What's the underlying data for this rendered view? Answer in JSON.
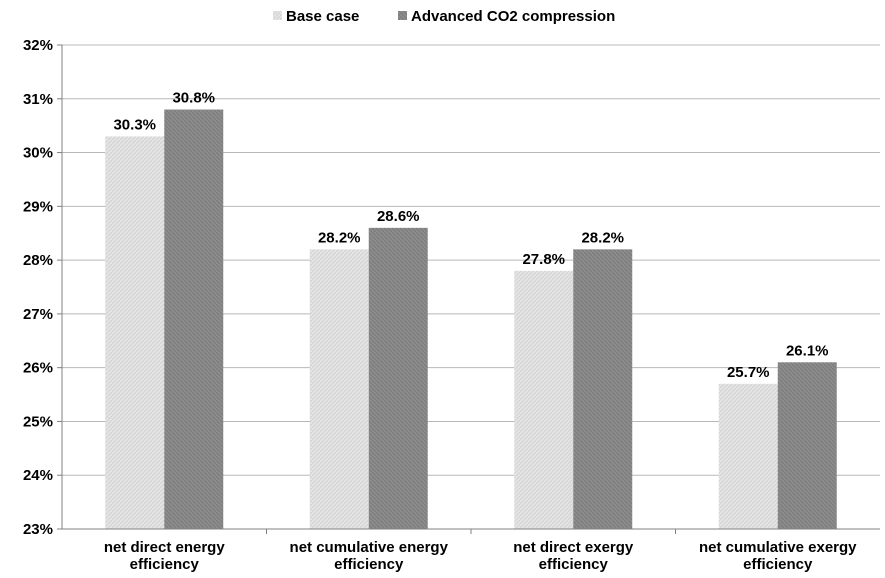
{
  "chart_data": {
    "type": "bar",
    "categories": [
      [
        "net direct energy",
        "efficiency"
      ],
      [
        "net cumulative energy",
        "efficiency"
      ],
      [
        "net direct exergy",
        "efficiency"
      ],
      [
        "net cumulative exergy",
        "efficiency"
      ]
    ],
    "series": [
      {
        "name": "Base case",
        "values": [
          30.3,
          28.2,
          27.8,
          25.7
        ],
        "labels": [
          "30.3%",
          "28.2%",
          "27.8%",
          "25.7%"
        ],
        "color": "#e4e4e4",
        "pattern_color": "#d2d2d2"
      },
      {
        "name": "Advanced CO2 compression",
        "values": [
          30.8,
          28.6,
          28.2,
          26.1
        ],
        "labels": [
          "30.8%",
          "28.6%",
          "28.2%",
          "26.1%"
        ],
        "color": "#8c8c8c",
        "pattern_color": "#7a7a7a"
      }
    ],
    "ylim": [
      23,
      32
    ],
    "yticks": [
      "23%",
      "24%",
      "25%",
      "26%",
      "27%",
      "28%",
      "29%",
      "30%",
      "31%",
      "32%"
    ],
    "grid": true,
    "legend_position": "top"
  }
}
